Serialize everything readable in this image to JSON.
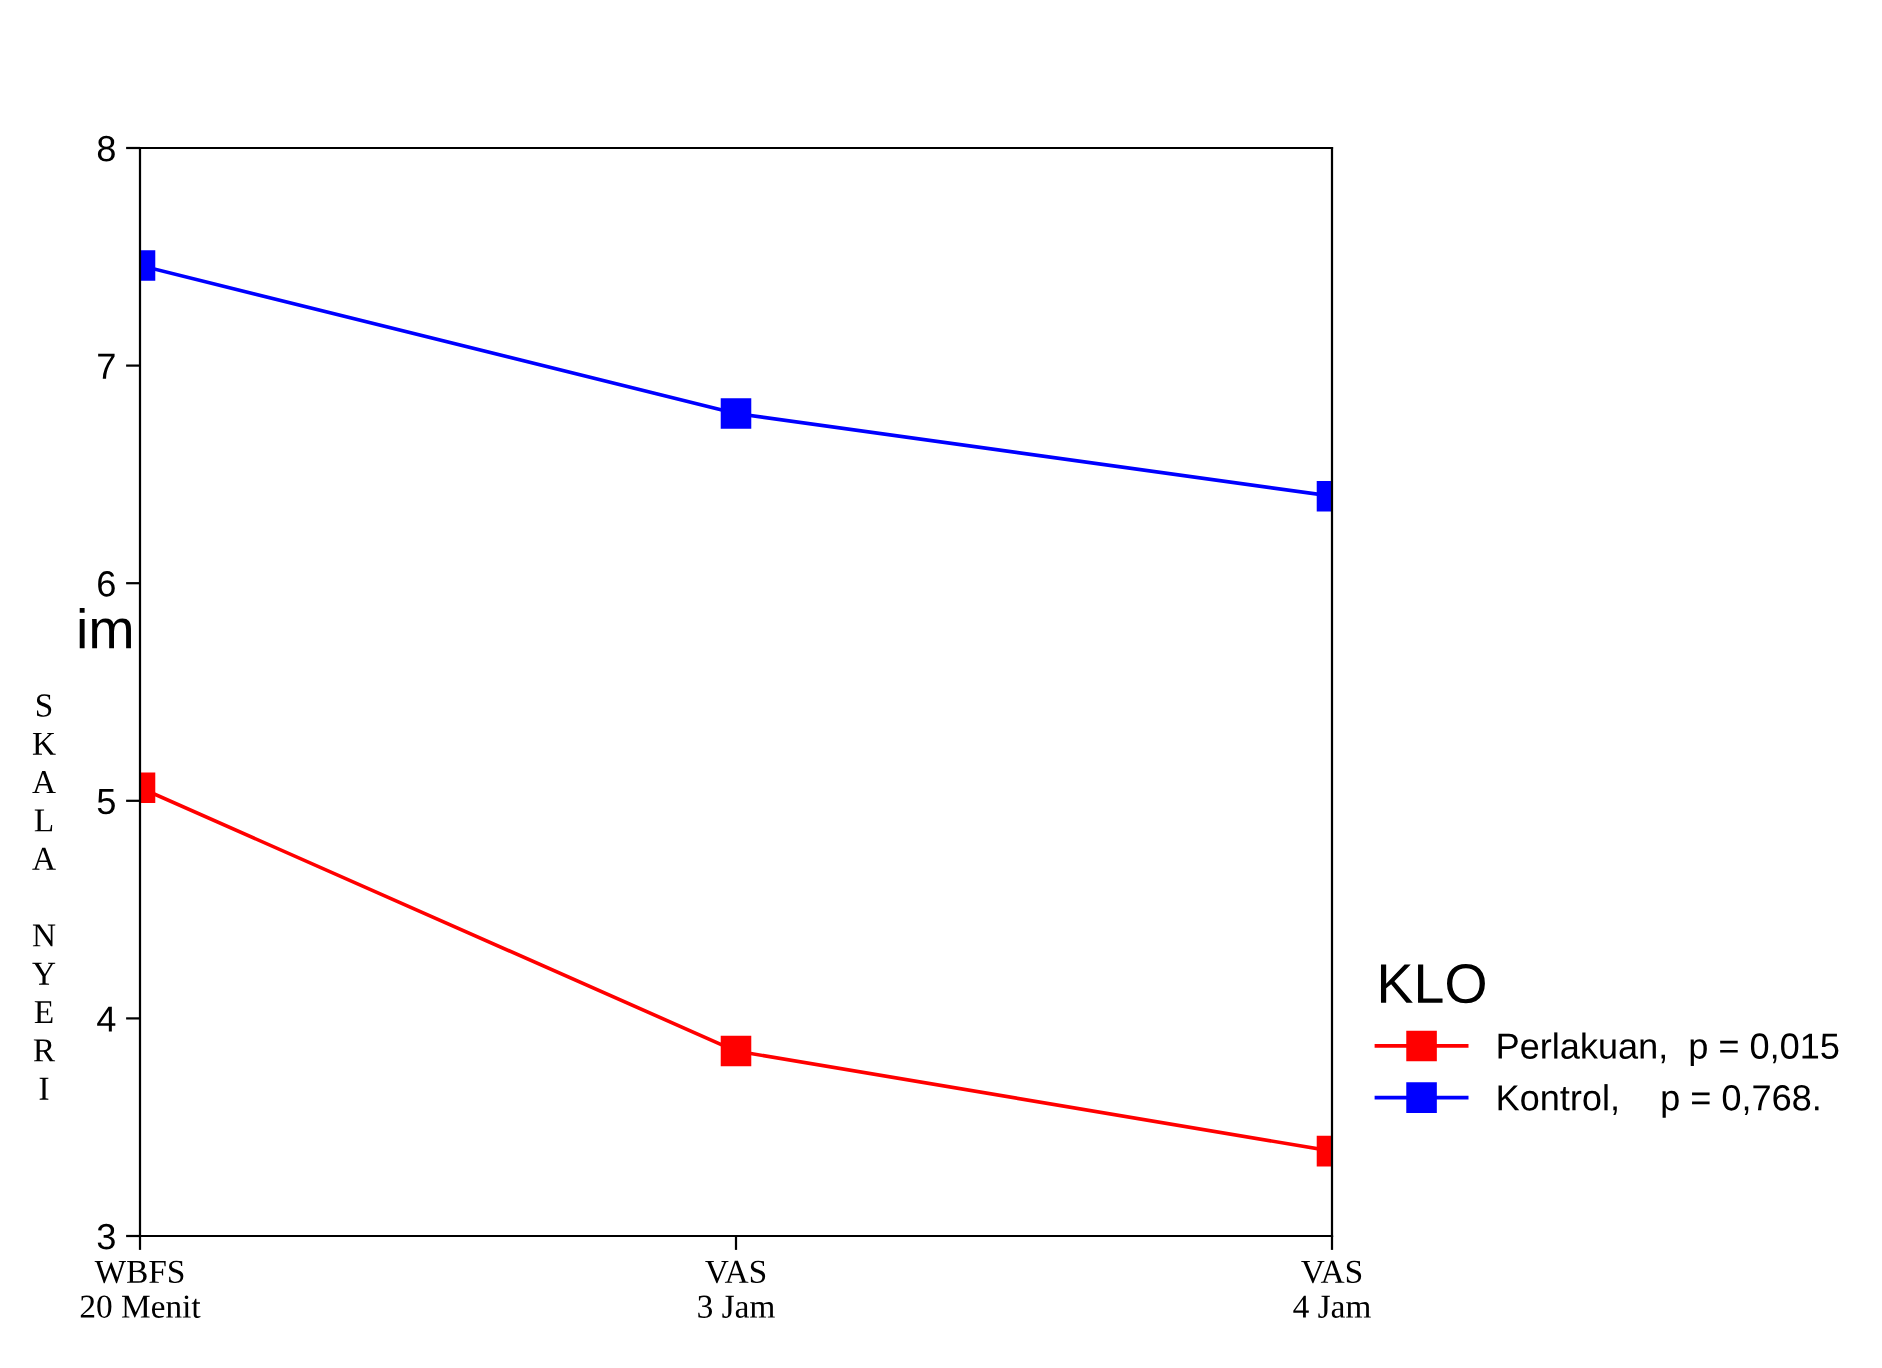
{
  "chart_data": {
    "type": "line",
    "ylabel": "SKALA NYERI",
    "legend_title": "KLO",
    "categories": [
      "WBFS\n20 Menit",
      "VAS\n3 Jam",
      "VAS\n4 Jam"
    ],
    "series": [
      {
        "name": "Perlakuan,  p = 0,015",
        "color": "#ff0000",
        "values": [
          5.06,
          3.85,
          3.39
        ]
      },
      {
        "name": "Kontrol,    p = 0,768.",
        "color": "#0000ff",
        "values": [
          7.46,
          6.78,
          6.4
        ]
      }
    ],
    "ylim": [
      3,
      8
    ],
    "yticks": [
      3,
      4,
      5,
      6,
      7,
      8
    ],
    "grid": false,
    "legend": "right",
    "marker": "square",
    "line_style": "solid",
    "annotations": [
      "im"
    ]
  }
}
